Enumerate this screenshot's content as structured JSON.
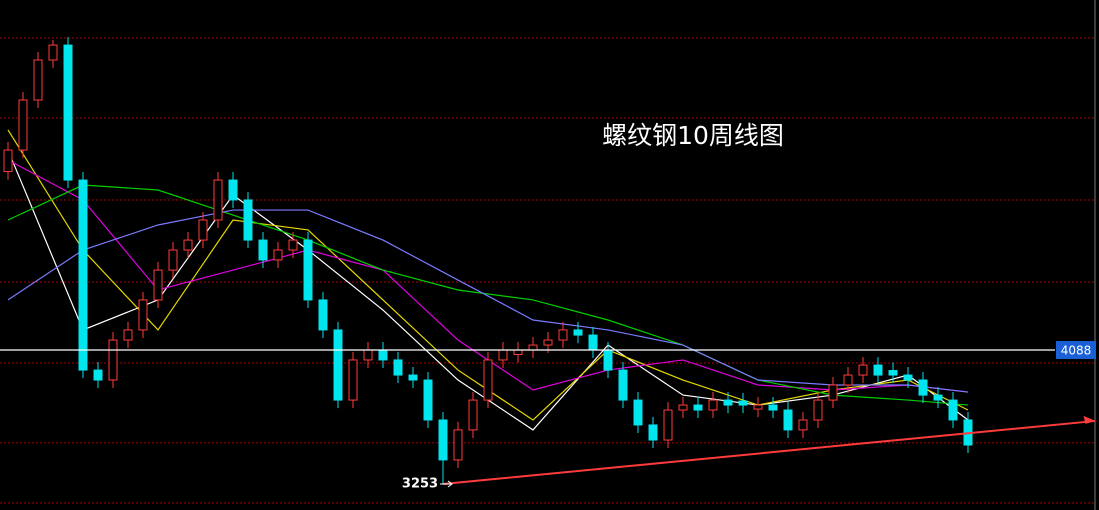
{
  "chart_data": {
    "type": "candlestick",
    "title": "螺纹钢10周线图",
    "ylim": [
      3091,
      6269
    ],
    "grid_lines": [
      6032,
      5534,
      5023,
      4512,
      4007,
      3509,
      3135
    ],
    "grid_color": "#b00000",
    "up_color": "#ff3b3b",
    "down_color": "#00e5ee",
    "open": [
      5200,
      5334,
      5646,
      5895,
      5988,
      5147,
      3963,
      3901,
      4150,
      4213,
      4400,
      4586,
      4711,
      4773,
      4898,
      5147,
      5023,
      4773,
      4649,
      4711,
      4773,
      4400,
      4213,
      3776,
      4026,
      4088,
      4026,
      3932,
      3901,
      3652,
      3403,
      3590,
      3776,
      4026,
      4060,
      4088,
      4119,
      4150,
      4213,
      4181,
      4088,
      3963,
      3776,
      3621,
      3527,
      3714,
      3745,
      3714,
      3776,
      3770,
      3720,
      3745,
      3714,
      3590,
      3652,
      3776,
      3870,
      3932,
      3994,
      3960,
      3932,
      3901,
      3807,
      3776,
      3652
    ],
    "high": [
      5384,
      5696,
      5945,
      6020,
      6038,
      5197,
      4013,
      4200,
      4263,
      4450,
      4636,
      4761,
      4823,
      4948,
      5197,
      5197,
      5073,
      4823,
      4761,
      4823,
      4823,
      4450,
      4263,
      4076,
      4138,
      4138,
      4076,
      3982,
      3951,
      3702,
      3640,
      3826,
      4076,
      4138,
      4138,
      4169,
      4200,
      4263,
      4263,
      4231,
      4138,
      4013,
      3826,
      3671,
      3764,
      3795,
      3795,
      3826,
      3826,
      3820,
      3795,
      3795,
      3764,
      3702,
      3826,
      3920,
      3982,
      4044,
      4044,
      4010,
      3982,
      3951,
      3857,
      3826,
      3702
    ],
    "low": [
      5150,
      5284,
      5596,
      5845,
      5097,
      3913,
      3851,
      3851,
      4100,
      4163,
      4350,
      4536,
      4661,
      4723,
      4848,
      4973,
      4723,
      4599,
      4599,
      4661,
      4350,
      4163,
      3726,
      3726,
      3976,
      3976,
      3882,
      3851,
      3602,
      3253,
      3353,
      3540,
      3726,
      3976,
      4010,
      4038,
      4069,
      4100,
      4131,
      4038,
      3913,
      3726,
      3571,
      3477,
      3477,
      3664,
      3664,
      3664,
      3695,
      3695,
      3670,
      3664,
      3540,
      3540,
      3602,
      3726,
      3820,
      3882,
      3882,
      3882,
      3851,
      3757,
      3726,
      3602,
      3446
    ],
    "close": [
      5334,
      5646,
      5895,
      5988,
      5147,
      3963,
      3901,
      4150,
      4213,
      4400,
      4586,
      4711,
      4773,
      4898,
      5147,
      5023,
      4773,
      4649,
      4711,
      4773,
      4400,
      4213,
      3776,
      4026,
      4088,
      4026,
      3932,
      3901,
      3652,
      3403,
      3590,
      3776,
      4026,
      4088,
      4088,
      4119,
      4150,
      4213,
      4181,
      4088,
      3963,
      3776,
      3621,
      3527,
      3714,
      3745,
      3714,
      3776,
      3745,
      3745,
      3745,
      3714,
      3590,
      3652,
      3776,
      3870,
      3932,
      3994,
      3932,
      3932,
      3901,
      3807,
      3776,
      3652,
      3496
    ],
    "ma_lines": [
      {
        "color": "#ffffff",
        "x": [
          0,
          5,
          10,
          15,
          20,
          25,
          30,
          35,
          40,
          45,
          50,
          55,
          60,
          64
        ],
        "values": [
          5334,
          4213,
          4400,
          5054,
          4711,
          4337,
          3901,
          3590,
          4119,
          3807,
          3745,
          3807,
          3932,
          3652
        ]
      },
      {
        "color": "#e6d800",
        "x": [
          0,
          5,
          10,
          15,
          20,
          25,
          30,
          35,
          40,
          45,
          50,
          55,
          60,
          64
        ],
        "values": [
          5459,
          4711,
          4213,
          4898,
          4836,
          4400,
          3963,
          3652,
          4088,
          3901,
          3745,
          3839,
          3901,
          3714
        ]
      },
      {
        "color": "#e000e0",
        "x": [
          0,
          5,
          10,
          15,
          20,
          25,
          30,
          35,
          40,
          45,
          50,
          55,
          60,
          64
        ],
        "values": [
          5272,
          5023,
          4462,
          4586,
          4711,
          4586,
          4150,
          3839,
          3963,
          4026,
          3870,
          3839,
          3870,
          3826
        ]
      },
      {
        "color": "#00d000",
        "x": [
          0,
          5,
          10,
          15,
          20,
          25,
          30,
          35,
          40,
          45,
          50,
          55,
          60,
          64
        ],
        "values": [
          4898,
          5116,
          5085,
          4929,
          4773,
          4586,
          4462,
          4400,
          4275,
          4119,
          3901,
          3807,
          3776,
          3745
        ]
      },
      {
        "color": "#7a7aff",
        "x": [
          0,
          5,
          10,
          15,
          20,
          25,
          30,
          35,
          40,
          45,
          50,
          55,
          60,
          64
        ],
        "values": [
          4400,
          4711,
          4867,
          4960,
          4960,
          4773,
          4524,
          4275,
          4213,
          4119,
          3901,
          3870,
          3870,
          3826
        ]
      }
    ],
    "hline": 4088,
    "low_label": 3253,
    "trendline": {
      "color": "#ff3b3b",
      "x": [
        29,
        72.5
      ],
      "values": [
        3253,
        3646
      ]
    }
  }
}
